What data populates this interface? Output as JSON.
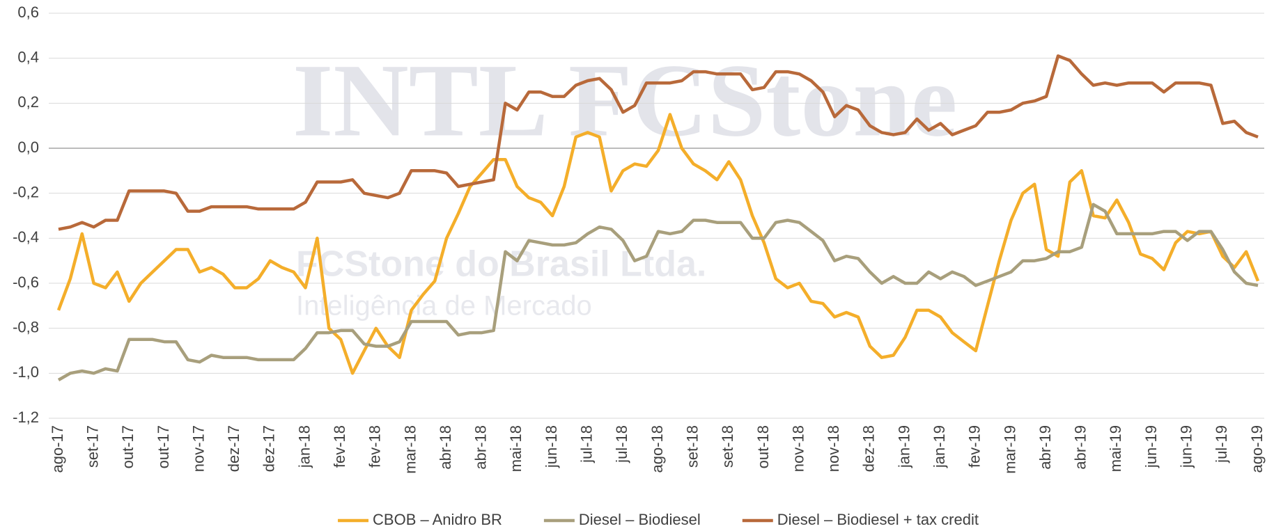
{
  "chart_data": {
    "type": "line",
    "watermark": {
      "brand": "INTL FCStone",
      "company": "FCStone do Brasil Ltda.",
      "tagline": "Inteligência de Mercado"
    },
    "categories": [
      "ago-17",
      null,
      null,
      "set-17",
      null,
      null,
      "out-17",
      null,
      null,
      "out-17",
      null,
      null,
      "nov-17",
      null,
      null,
      "dez-17",
      null,
      null,
      "dez-17",
      null,
      null,
      "jan-18",
      null,
      null,
      "fev-18",
      null,
      null,
      "fev-18",
      null,
      null,
      "mar-18",
      null,
      null,
      "abr-18",
      null,
      null,
      "abr-18",
      null,
      null,
      "mai-18",
      null,
      null,
      "jun-18",
      null,
      null,
      "jul-18",
      null,
      null,
      "jul-18",
      null,
      null,
      "ago-18",
      null,
      null,
      "set-18",
      null,
      null,
      "set-18",
      null,
      null,
      "out-18",
      null,
      null,
      "nov-18",
      null,
      null,
      "nov-18",
      null,
      null,
      "dez-18",
      null,
      null,
      "jan-19",
      null,
      null,
      "jan-19",
      null,
      null,
      "fev-19",
      null,
      null,
      "mar-19",
      null,
      null,
      "abr-19",
      null,
      null,
      "abr-19",
      null,
      null,
      "mai-19",
      null,
      null,
      "jun-19",
      null,
      null,
      "jun-19",
      null,
      null,
      "jul-19",
      null,
      null,
      "ago-19"
    ],
    "series": [
      {
        "name": "CBOB – Anidro BR",
        "color": "#f4ae2a",
        "values": [
          -0.72,
          -0.58,
          -0.38,
          -0.6,
          -0.62,
          -0.55,
          -0.68,
          -0.6,
          -0.55,
          -0.5,
          -0.45,
          -0.45,
          -0.55,
          -0.53,
          -0.56,
          -0.62,
          -0.62,
          -0.58,
          -0.5,
          -0.53,
          -0.55,
          -0.62,
          -0.4,
          -0.8,
          -0.85,
          -1.0,
          -0.9,
          -0.8,
          -0.88,
          -0.93,
          -0.72,
          -0.65,
          -0.59,
          -0.4,
          -0.29,
          -0.17,
          -0.11,
          -0.05,
          -0.05,
          -0.17,
          -0.22,
          -0.24,
          -0.3,
          -0.17,
          0.05,
          0.07,
          0.05,
          -0.19,
          -0.1,
          -0.07,
          -0.08,
          -0.01,
          0.15,
          0.0,
          -0.07,
          -0.1,
          -0.14,
          -0.06,
          -0.14,
          -0.3,
          -0.42,
          -0.58,
          -0.62,
          -0.6,
          -0.68,
          -0.69,
          -0.75,
          -0.73,
          -0.75,
          -0.88,
          -0.93,
          -0.92,
          -0.84,
          -0.72,
          -0.72,
          -0.75,
          -0.82,
          -0.86,
          -0.9,
          -0.7,
          -0.5,
          -0.32,
          -0.2,
          -0.16,
          -0.45,
          -0.48,
          -0.15,
          -0.1,
          -0.3,
          -0.31,
          -0.23,
          -0.33,
          -0.47,
          -0.49,
          -0.54,
          -0.42,
          -0.37,
          -0.38,
          -0.37,
          -0.48,
          -0.53,
          -0.46,
          -0.59
        ]
      },
      {
        "name": "Diesel – Biodiesel",
        "color": "#a89f7c",
        "values": [
          -1.03,
          -1.0,
          -0.99,
          -1.0,
          -0.98,
          -0.99,
          -0.85,
          -0.85,
          -0.85,
          -0.86,
          -0.86,
          -0.94,
          -0.95,
          -0.92,
          -0.93,
          -0.93,
          -0.93,
          -0.94,
          -0.94,
          -0.94,
          -0.94,
          -0.89,
          -0.82,
          -0.82,
          -0.81,
          -0.81,
          -0.87,
          -0.88,
          -0.88,
          -0.86,
          -0.77,
          -0.77,
          -0.77,
          -0.77,
          -0.83,
          -0.82,
          -0.82,
          -0.81,
          -0.46,
          -0.5,
          -0.41,
          -0.42,
          -0.43,
          -0.43,
          -0.42,
          -0.38,
          -0.35,
          -0.36,
          -0.41,
          -0.5,
          -0.48,
          -0.37,
          -0.38,
          -0.37,
          -0.32,
          -0.32,
          -0.33,
          -0.33,
          -0.33,
          -0.4,
          -0.4,
          -0.33,
          -0.32,
          -0.33,
          -0.37,
          -0.41,
          -0.5,
          -0.48,
          -0.49,
          -0.55,
          -0.6,
          -0.57,
          -0.6,
          -0.6,
          -0.55,
          -0.58,
          -0.55,
          -0.57,
          -0.61,
          -0.59,
          -0.57,
          -0.55,
          -0.5,
          -0.5,
          -0.49,
          -0.46,
          -0.46,
          -0.44,
          -0.25,
          -0.28,
          -0.38,
          -0.38,
          -0.38,
          -0.38,
          -0.37,
          -0.37,
          -0.41,
          -0.37,
          -0.37,
          -0.45,
          -0.55,
          -0.6,
          -0.61
        ]
      },
      {
        "name": "Diesel – Biodiesel + tax credit",
        "color": "#b8693a",
        "values": [
          -0.36,
          -0.35,
          -0.33,
          -0.35,
          -0.32,
          -0.32,
          -0.19,
          -0.19,
          -0.19,
          -0.19,
          -0.2,
          -0.28,
          -0.28,
          -0.26,
          -0.26,
          -0.26,
          -0.26,
          -0.27,
          -0.27,
          -0.27,
          -0.27,
          -0.24,
          -0.15,
          -0.15,
          -0.15,
          -0.14,
          -0.2,
          -0.21,
          -0.22,
          -0.2,
          -0.1,
          -0.1,
          -0.1,
          -0.11,
          -0.17,
          -0.16,
          -0.15,
          -0.14,
          0.2,
          0.17,
          0.25,
          0.25,
          0.23,
          0.23,
          0.28,
          0.3,
          0.31,
          0.26,
          0.16,
          0.19,
          0.29,
          0.29,
          0.29,
          0.3,
          0.34,
          0.34,
          0.33,
          0.33,
          0.33,
          0.26,
          0.27,
          0.34,
          0.34,
          0.33,
          0.3,
          0.25,
          0.14,
          0.19,
          0.17,
          0.1,
          0.07,
          0.06,
          0.07,
          0.13,
          0.08,
          0.11,
          0.06,
          0.08,
          0.1,
          0.16,
          0.16,
          0.17,
          0.2,
          0.21,
          0.23,
          0.41,
          0.39,
          0.33,
          0.28,
          0.29,
          0.28,
          0.29,
          0.29,
          0.29,
          0.25,
          0.29,
          0.29,
          0.29,
          0.28,
          0.11,
          0.12,
          0.07,
          0.05
        ]
      }
    ],
    "ylim": [
      -1.2,
      0.6
    ],
    "yticks": [
      {
        "value": -1.2,
        "label": "-1,2"
      },
      {
        "value": -1.0,
        "label": "-1,0"
      },
      {
        "value": -0.8,
        "label": "-0,8"
      },
      {
        "value": -0.6,
        "label": "-0,6"
      },
      {
        "value": -0.4,
        "label": "-0,4"
      },
      {
        "value": -0.2,
        "label": "-0,2"
      },
      {
        "value": 0.0,
        "label": "0,0"
      },
      {
        "value": 0.2,
        "label": "0,2"
      },
      {
        "value": 0.4,
        "label": "0,4"
      },
      {
        "value": 0.6,
        "label": "0,6"
      }
    ],
    "grid": true,
    "legend": "bottom"
  }
}
